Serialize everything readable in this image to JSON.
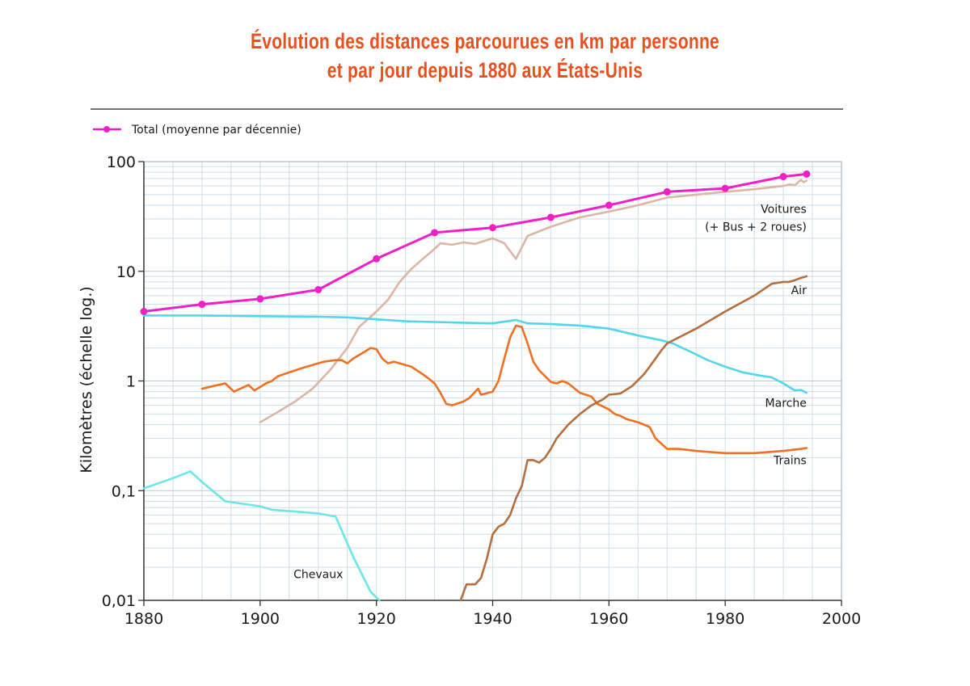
{
  "chart_data": {
    "type": "line",
    "title_line1": "Évolution des distances parcourues en km par personne",
    "title_line2": "et par jour depuis 1880 aux États-Unis",
    "xlabel": "",
    "ylabel": "Kilomètres (échelle log.)",
    "yscale": "log",
    "xlim": [
      1880,
      2000
    ],
    "ylim": [
      0.01,
      100
    ],
    "x_ticks": [
      1880,
      1900,
      1920,
      1940,
      1960,
      1980,
      2000
    ],
    "y_ticks": [
      {
        "value": 100,
        "label": "100"
      },
      {
        "value": 10,
        "label": "10"
      },
      {
        "value": 1,
        "label": "1"
      },
      {
        "value": 0.1,
        "label": "0,1"
      },
      {
        "value": 0.01,
        "label": "0,01"
      }
    ],
    "grid": true,
    "legend": {
      "position": "top-left",
      "entries": [
        "Total (moyenne par décennie)"
      ]
    },
    "colors": {
      "total": "#f020c8",
      "voitures": "#dcb6a4",
      "air": "#b56f3e",
      "marche": "#52d6ee",
      "trains": "#ef7021",
      "chevaux": "#6ce6e6",
      "title": "#e8501e"
    },
    "series": [
      {
        "key": "total",
        "name": "Total (moyenne par décennie)",
        "markers": true,
        "points": [
          [
            1880,
            4.3
          ],
          [
            1890,
            5.0
          ],
          [
            1900,
            5.6
          ],
          [
            1910,
            6.8
          ],
          [
            1920,
            13
          ],
          [
            1930,
            22.5
          ],
          [
            1940,
            25
          ],
          [
            1950,
            31
          ],
          [
            1960,
            40
          ],
          [
            1970,
            53
          ],
          [
            1980,
            57
          ],
          [
            1990,
            73
          ],
          [
            1994,
            77
          ]
        ]
      },
      {
        "key": "voitures",
        "name": "Voitures",
        "name2": "(+ Bus + 2 roues)",
        "label_at": [
          1994,
          34
        ],
        "markers": false,
        "points": [
          [
            1900,
            0.42
          ],
          [
            1903,
            0.52
          ],
          [
            1906,
            0.65
          ],
          [
            1909,
            0.85
          ],
          [
            1912,
            1.25
          ],
          [
            1915,
            2.0
          ],
          [
            1917,
            3.1
          ],
          [
            1920,
            4.3
          ],
          [
            1922,
            5.5
          ],
          [
            1924,
            8.0
          ],
          [
            1926,
            10.5
          ],
          [
            1928,
            13
          ],
          [
            1930,
            16
          ],
          [
            1931,
            18
          ],
          [
            1933,
            17.5
          ],
          [
            1935,
            18.3
          ],
          [
            1937,
            17.8
          ],
          [
            1940,
            20
          ],
          [
            1942,
            18
          ],
          [
            1944,
            13
          ],
          [
            1946,
            21
          ],
          [
            1950,
            25.5
          ],
          [
            1955,
            31
          ],
          [
            1960,
            35
          ],
          [
            1965,
            40
          ],
          [
            1970,
            47
          ],
          [
            1975,
            50
          ],
          [
            1980,
            53
          ],
          [
            1985,
            56
          ],
          [
            1990,
            60
          ],
          [
            1991,
            62
          ],
          [
            1992,
            61
          ],
          [
            1993,
            68
          ],
          [
            1993.5,
            65
          ],
          [
            1994,
            67
          ]
        ]
      },
      {
        "key": "air",
        "name": "Air",
        "label_at": [
          1994,
          6.2
        ],
        "markers": false,
        "points": [
          [
            1934.5,
            0.01
          ],
          [
            1935.5,
            0.014
          ],
          [
            1937,
            0.014
          ],
          [
            1938,
            0.016
          ],
          [
            1939,
            0.024
          ],
          [
            1940,
            0.04
          ],
          [
            1941,
            0.047
          ],
          [
            1942,
            0.05
          ],
          [
            1943,
            0.06
          ],
          [
            1944,
            0.085
          ],
          [
            1945,
            0.11
          ],
          [
            1946,
            0.19
          ],
          [
            1947,
            0.19
          ],
          [
            1948,
            0.18
          ],
          [
            1949,
            0.2
          ],
          [
            1950,
            0.24
          ],
          [
            1951,
            0.3
          ],
          [
            1953,
            0.4
          ],
          [
            1955,
            0.5
          ],
          [
            1957,
            0.6
          ],
          [
            1959,
            0.68
          ],
          [
            1960,
            0.75
          ],
          [
            1962,
            0.77
          ],
          [
            1964,
            0.9
          ],
          [
            1966,
            1.15
          ],
          [
            1967,
            1.35
          ],
          [
            1969,
            1.9
          ],
          [
            1970,
            2.2
          ],
          [
            1975,
            3.0
          ],
          [
            1980,
            4.3
          ],
          [
            1985,
            6.0
          ],
          [
            1988,
            7.7
          ],
          [
            1990,
            8.0
          ],
          [
            1991,
            8.0
          ],
          [
            1992,
            8.3
          ],
          [
            1993,
            8.7
          ],
          [
            1994,
            9.0
          ]
        ]
      },
      {
        "key": "marche",
        "name": "Marche",
        "label_at": [
          1994,
          0.58
        ],
        "markers": false,
        "points": [
          [
            1880,
            3.95
          ],
          [
            1890,
            3.95
          ],
          [
            1900,
            3.9
          ],
          [
            1910,
            3.85
          ],
          [
            1915,
            3.8
          ],
          [
            1920,
            3.65
          ],
          [
            1925,
            3.5
          ],
          [
            1930,
            3.45
          ],
          [
            1935,
            3.4
          ],
          [
            1940,
            3.35
          ],
          [
            1944,
            3.6
          ],
          [
            1946,
            3.35
          ],
          [
            1950,
            3.3
          ],
          [
            1955,
            3.2
          ],
          [
            1960,
            3.0
          ],
          [
            1965,
            2.6
          ],
          [
            1969,
            2.35
          ],
          [
            1971,
            2.2
          ],
          [
            1974,
            1.85
          ],
          [
            1977,
            1.55
          ],
          [
            1980,
            1.35
          ],
          [
            1983,
            1.2
          ],
          [
            1986,
            1.12
          ],
          [
            1988,
            1.08
          ],
          [
            1990,
            0.95
          ],
          [
            1991,
            0.88
          ],
          [
            1992,
            0.82
          ],
          [
            1993,
            0.83
          ],
          [
            1994,
            0.78
          ]
        ]
      },
      {
        "key": "trains",
        "name": "Trains",
        "label_at": [
          1994,
          0.175
        ],
        "markers": false,
        "points": [
          [
            1890,
            0.85
          ],
          [
            1892,
            0.9
          ],
          [
            1894,
            0.95
          ],
          [
            1895.5,
            0.8
          ],
          [
            1897,
            0.87
          ],
          [
            1898,
            0.92
          ],
          [
            1899,
            0.82
          ],
          [
            1900,
            0.88
          ],
          [
            1901,
            0.95
          ],
          [
            1902,
            1.0
          ],
          [
            1903,
            1.1
          ],
          [
            1905,
            1.2
          ],
          [
            1907,
            1.3
          ],
          [
            1909,
            1.4
          ],
          [
            1910,
            1.45
          ],
          [
            1911,
            1.5
          ],
          [
            1913,
            1.55
          ],
          [
            1914,
            1.55
          ],
          [
            1915,
            1.45
          ],
          [
            1916,
            1.6
          ],
          [
            1918,
            1.85
          ],
          [
            1919,
            2.0
          ],
          [
            1920,
            1.95
          ],
          [
            1921,
            1.6
          ],
          [
            1922,
            1.45
          ],
          [
            1923,
            1.5
          ],
          [
            1925,
            1.4
          ],
          [
            1926,
            1.35
          ],
          [
            1928,
            1.15
          ],
          [
            1929,
            1.05
          ],
          [
            1930,
            0.95
          ],
          [
            1931,
            0.78
          ],
          [
            1932,
            0.62
          ],
          [
            1933,
            0.6
          ],
          [
            1935,
            0.65
          ],
          [
            1936,
            0.7
          ],
          [
            1937,
            0.8
          ],
          [
            1937.5,
            0.85
          ],
          [
            1938,
            0.75
          ],
          [
            1940,
            0.8
          ],
          [
            1941,
            1.0
          ],
          [
            1942,
            1.6
          ],
          [
            1943,
            2.5
          ],
          [
            1944,
            3.2
          ],
          [
            1945,
            3.1
          ],
          [
            1946,
            2.2
          ],
          [
            1947,
            1.5
          ],
          [
            1948,
            1.25
          ],
          [
            1950,
            0.98
          ],
          [
            1951,
            0.95
          ],
          [
            1952,
            1.0
          ],
          [
            1953,
            0.95
          ],
          [
            1955,
            0.78
          ],
          [
            1957,
            0.72
          ],
          [
            1958,
            0.62
          ],
          [
            1960,
            0.55
          ],
          [
            1961,
            0.5
          ],
          [
            1962,
            0.48
          ],
          [
            1963,
            0.45
          ],
          [
            1965,
            0.42
          ],
          [
            1967,
            0.38
          ],
          [
            1968,
            0.3
          ],
          [
            1970,
            0.24
          ],
          [
            1972,
            0.24
          ],
          [
            1975,
            0.23
          ],
          [
            1980,
            0.22
          ],
          [
            1985,
            0.22
          ],
          [
            1990,
            0.23
          ],
          [
            1993,
            0.24
          ],
          [
            1994,
            0.245
          ]
        ]
      },
      {
        "key": "chevaux",
        "name": "Chevaux",
        "label_at": [
          1910,
          0.016
        ],
        "markers": false,
        "points": [
          [
            1880,
            0.105
          ],
          [
            1885,
            0.13
          ],
          [
            1888,
            0.15
          ],
          [
            1890,
            0.12
          ],
          [
            1894,
            0.08
          ],
          [
            1900,
            0.072
          ],
          [
            1902,
            0.067
          ],
          [
            1905,
            0.065
          ],
          [
            1910,
            0.062
          ],
          [
            1913,
            0.058
          ],
          [
            1916,
            0.025
          ],
          [
            1919,
            0.012
          ],
          [
            1920.5,
            0.01
          ]
        ]
      }
    ]
  }
}
